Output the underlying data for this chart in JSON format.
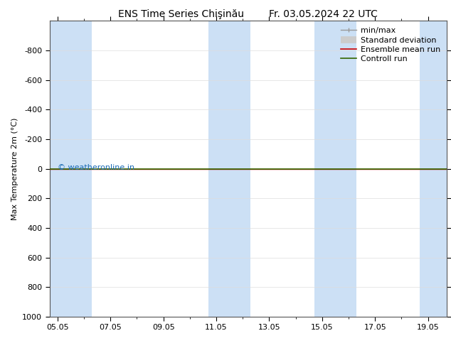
{
  "title": "ENS Time Series Chişinău        Fr. 03.05.2024 22 UTC",
  "ylabel": "Max Temperature 2m (°C)",
  "watermark": "© weatheronline.in",
  "ylim": [
    -1000,
    1000
  ],
  "yticks": [
    -800,
    -600,
    -400,
    -200,
    0,
    200,
    400,
    600,
    800,
    1000
  ],
  "x_dates": [
    "05.05",
    "07.05",
    "09.05",
    "11.05",
    "13.05",
    "15.05",
    "17.05",
    "19.05"
  ],
  "x_values": [
    0,
    2,
    4,
    6,
    8,
    10,
    12,
    14
  ],
  "x_min": -0.3,
  "x_max": 14.7,
  "shaded_bands": [
    {
      "x_start": -0.3,
      "x_end": 1.3
    },
    {
      "x_start": 5.7,
      "x_end": 7.3
    },
    {
      "x_start": 9.7,
      "x_end": 11.3
    },
    {
      "x_start": 13.7,
      "x_end": 14.7
    }
  ],
  "control_run_y": 0,
  "ensemble_mean_y": 0,
  "bg_color": "#ffffff",
  "plot_bg_color": "#ffffff",
  "shade_color": "#cce0f5",
  "control_run_color": "#336600",
  "ensemble_mean_color": "#cc0000",
  "minmax_color": "#999999",
  "stddev_color": "#cccccc",
  "watermark_color": "#1a6bb5",
  "title_fontsize": 10,
  "tick_fontsize": 8,
  "ylabel_fontsize": 8,
  "legend_fontsize": 8
}
